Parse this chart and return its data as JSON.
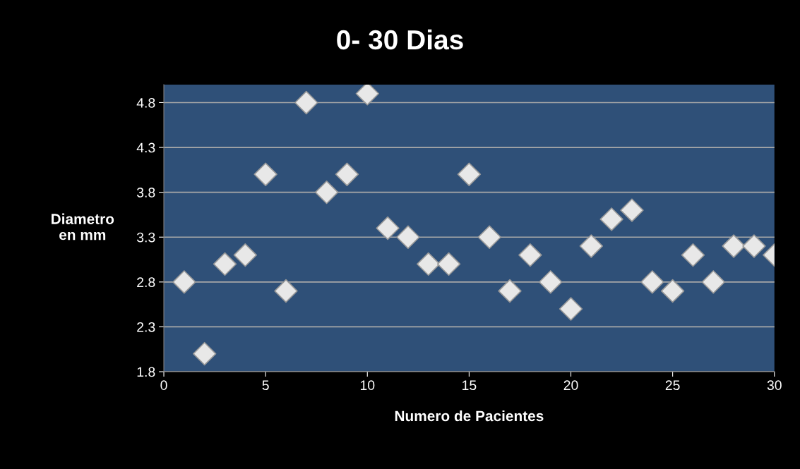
{
  "chart_data": {
    "type": "scatter",
    "title": "0- 30 Dias",
    "xlabel": "Numero de Pacientes",
    "ylabel": "Diametro\nen mm",
    "x": [
      1,
      2,
      3,
      4,
      5,
      6,
      7,
      8,
      9,
      10,
      11,
      12,
      13,
      14,
      15,
      16,
      17,
      18,
      19,
      20,
      21,
      22,
      23,
      24,
      25,
      26,
      27,
      28,
      29,
      30
    ],
    "series": [
      {
        "color": "#e8e8e8",
        "values": [
          2.8,
          2.0,
          3.0,
          3.1,
          4.0,
          2.7,
          4.8,
          3.8,
          4.0,
          4.9,
          3.4,
          3.3,
          3.0,
          3.0,
          4.0,
          3.3,
          2.7,
          3.1,
          2.8,
          2.5,
          3.2,
          3.5,
          3.6,
          2.8,
          2.7,
          3.1,
          2.8,
          3.2,
          3.2,
          3.1
        ]
      }
    ],
    "xlim": [
      0,
      30
    ],
    "xticks": [
      0,
      5,
      10,
      15,
      20,
      25,
      30
    ],
    "ylim": [
      1.8,
      5.0
    ],
    "yticks": [
      1.8,
      2.3,
      2.8,
      3.3,
      3.8,
      4.3,
      4.8
    ],
    "grid": "y",
    "marker": "diamond",
    "legend": false
  }
}
